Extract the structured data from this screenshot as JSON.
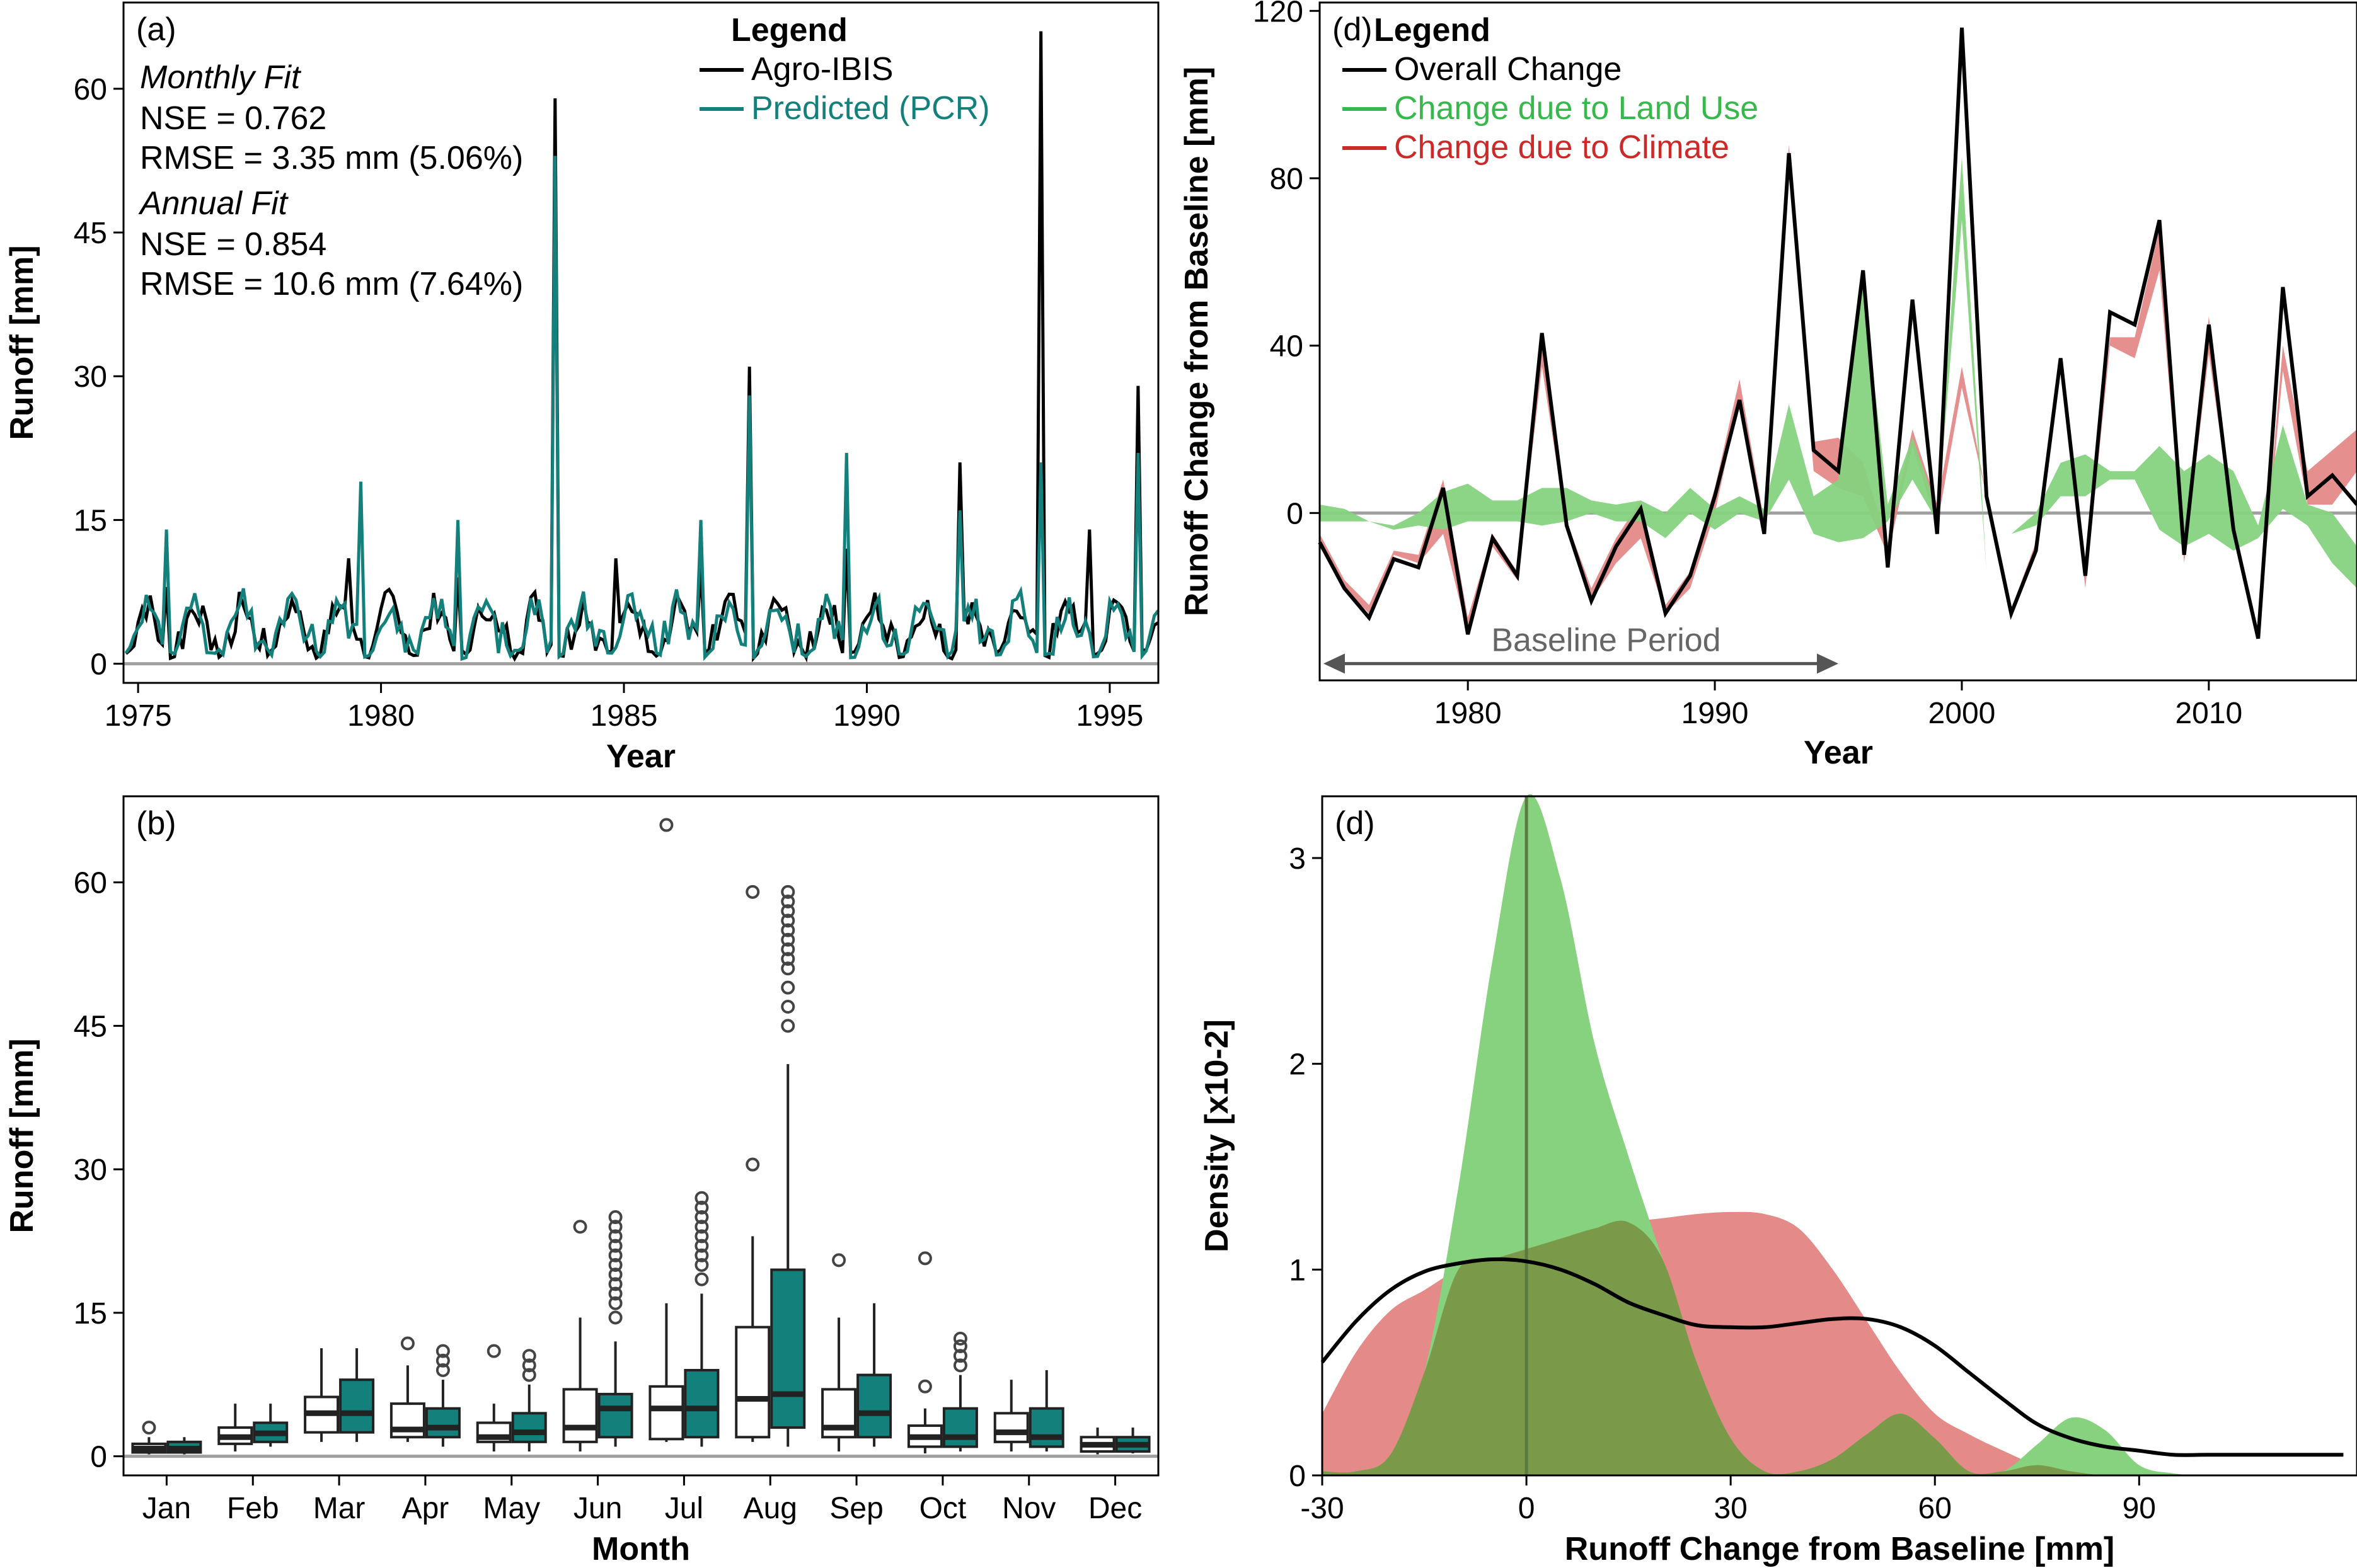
{
  "figure": {
    "colors": {
      "agro_ibis": "#000000",
      "predicted_pcr": "#14807c",
      "zero_line": "#a0a0a0",
      "land_use": "#37b84b",
      "land_use_fill": "#86d27f",
      "climate": "#cc2929",
      "climate_fill": "#e48a88",
      "overlap_fill": "#7a9a4a",
      "baseline_arrow": "#555555"
    }
  },
  "chart_data": [
    {
      "id": "a",
      "type": "line",
      "panel_label": "(a)",
      "xlabel": "Year",
      "ylabel": "Runoff [mm]",
      "xlim": [
        1974.7,
        1996.0
      ],
      "ylim": [
        -2,
        69
      ],
      "xticks": [
        1975,
        1980,
        1985,
        1990,
        1995
      ],
      "yticks": [
        0,
        15,
        30,
        45,
        60
      ],
      "grid": false,
      "legend_title": "Legend",
      "legend_position": "top-right",
      "annotations": [
        {
          "text": "Monthly Fit",
          "italic": true
        },
        {
          "text": "NSE = 0.762",
          "italic": false
        },
        {
          "text": "RMSE = 3.35 mm (5.06%)",
          "italic": false
        },
        {
          "text": "Annual Fit",
          "italic": true
        },
        {
          "text": "NSE = 0.854",
          "italic": false
        },
        {
          "text": "RMSE = 10.6 mm (7.64%)",
          "italic": false
        }
      ],
      "zero_line": 0,
      "series": [
        {
          "name": "Agro-IBIS",
          "color": "#000000",
          "spikes": [
            [
              1975.6,
              8
            ],
            [
              1979.3,
              11
            ],
            [
              1981.6,
              9
            ],
            [
              1983.6,
              59
            ],
            [
              1984.8,
              11
            ],
            [
              1986.6,
              10
            ],
            [
              1987.6,
              31
            ],
            [
              1989.6,
              12
            ],
            [
              1991.9,
              21
            ],
            [
              1993.6,
              66
            ],
            [
              1994.6,
              14
            ],
            [
              1995.6,
              29
            ]
          ]
        },
        {
          "name": "Predicted (PCR)",
          "color": "#14807c",
          "spikes": [
            [
              1975.6,
              14
            ],
            [
              1979.6,
              19
            ],
            [
              1981.6,
              15
            ],
            [
              1983.6,
              53
            ],
            [
              1986.6,
              15
            ],
            [
              1987.6,
              28
            ],
            [
              1989.6,
              22
            ],
            [
              1991.9,
              16
            ],
            [
              1993.6,
              21
            ],
            [
              1995.6,
              22
            ]
          ]
        }
      ]
    },
    {
      "id": "b",
      "type": "box",
      "panel_label": "(b)",
      "xlabel": "Month",
      "ylabel": "Runoff [mm]",
      "ylim": [
        -2,
        69
      ],
      "yticks": [
        0,
        15,
        30,
        45,
        60
      ],
      "categories": [
        "Jan",
        "Feb",
        "Mar",
        "Apr",
        "May",
        "Jun",
        "Jul",
        "Aug",
        "Sep",
        "Oct",
        "Nov",
        "Dec"
      ],
      "zero_line": 0,
      "series": [
        {
          "name": "Agro-IBIS",
          "fill": "#ffffff",
          "boxes": [
            {
              "min": 0.2,
              "q1": 0.4,
              "median": 0.8,
              "q3": 1.3,
              "max": 2.0,
              "outliers": [
                3.0
              ]
            },
            {
              "min": 0.5,
              "q1": 1.3,
              "median": 2.0,
              "q3": 3.0,
              "max": 5.5,
              "outliers": []
            },
            {
              "min": 1.5,
              "q1": 2.5,
              "median": 4.5,
              "q3": 6.2,
              "max": 11.3,
              "outliers": []
            },
            {
              "min": 1.5,
              "q1": 2.0,
              "median": 2.8,
              "q3": 5.5,
              "max": 9.5,
              "outliers": [
                11.8
              ]
            },
            {
              "min": 0.5,
              "q1": 1.5,
              "median": 2.0,
              "q3": 3.5,
              "max": 5.5,
              "outliers": [
                11.0
              ]
            },
            {
              "min": 0.5,
              "q1": 1.5,
              "median": 3.0,
              "q3": 7.0,
              "max": 14.5,
              "outliers": [
                24.0
              ]
            },
            {
              "min": 1.5,
              "q1": 1.8,
              "median": 5.0,
              "q3": 7.3,
              "max": 16.0,
              "outliers": [
                66.0
              ]
            },
            {
              "min": 1.5,
              "q1": 2.0,
              "median": 6.0,
              "q3": 13.5,
              "max": 23.0,
              "outliers": [
                30.5,
                59.0
              ]
            },
            {
              "min": 0.5,
              "q1": 2.0,
              "median": 3.0,
              "q3": 7.0,
              "max": 14.5,
              "outliers": [
                20.5
              ]
            },
            {
              "min": 0.3,
              "q1": 1.0,
              "median": 2.0,
              "q3": 3.2,
              "max": 5.0,
              "outliers": [
                7.3,
                20.7
              ]
            },
            {
              "min": 0.5,
              "q1": 1.5,
              "median": 2.5,
              "q3": 4.5,
              "max": 8.0,
              "outliers": []
            },
            {
              "min": 0.2,
              "q1": 0.5,
              "median": 1.2,
              "q3": 2.0,
              "max": 3.0,
              "outliers": []
            }
          ]
        },
        {
          "name": "Predicted (PCR)",
          "fill": "#14807c",
          "boxes": [
            {
              "min": 0.2,
              "q1": 0.4,
              "median": 0.8,
              "q3": 1.5,
              "max": 2.0,
              "outliers": []
            },
            {
              "min": 1.0,
              "q1": 1.5,
              "median": 2.4,
              "q3": 3.5,
              "max": 5.5,
              "outliers": []
            },
            {
              "min": 1.5,
              "q1": 2.5,
              "median": 4.5,
              "q3": 8.0,
              "max": 11.3,
              "outliers": []
            },
            {
              "min": 1.0,
              "q1": 2.0,
              "median": 3.0,
              "q3": 5.0,
              "max": 8.0,
              "outliers": [
                9.0,
                10.0,
                11.0
              ]
            },
            {
              "min": 0.5,
              "q1": 1.5,
              "median": 2.5,
              "q3": 4.5,
              "max": 7.5,
              "outliers": [
                8.5,
                9.5,
                10.5
              ]
            },
            {
              "min": 1.0,
              "q1": 2.0,
              "median": 5.0,
              "q3": 6.5,
              "max": 12.0,
              "outliers": [
                14.5,
                16,
                17,
                18,
                19,
                20,
                21,
                22,
                23,
                24,
                25
              ]
            },
            {
              "min": 1.0,
              "q1": 2.0,
              "median": 5.0,
              "q3": 9.0,
              "max": 17.0,
              "outliers": [
                18.5,
                20,
                21,
                22,
                23,
                24,
                25,
                26,
                27
              ]
            },
            {
              "min": 1.0,
              "q1": 3.0,
              "median": 6.5,
              "q3": 19.5,
              "max": 41.0,
              "outliers": [
                45,
                47,
                49,
                51,
                52,
                53,
                54,
                55,
                56,
                57,
                58,
                59
              ]
            },
            {
              "min": 1.0,
              "q1": 2.0,
              "median": 4.5,
              "q3": 8.5,
              "max": 16.0,
              "outliers": []
            },
            {
              "min": 0.5,
              "q1": 1.0,
              "median": 2.0,
              "q3": 5.0,
              "max": 8.5,
              "outliers": [
                9.5,
                10.5,
                11.5,
                12.3
              ]
            },
            {
              "min": 0.5,
              "q1": 1.0,
              "median": 2.0,
              "q3": 5.0,
              "max": 9.0,
              "outliers": []
            },
            {
              "min": 0.3,
              "q1": 0.5,
              "median": 1.2,
              "q3": 2.0,
              "max": 3.0,
              "outliers": []
            }
          ]
        }
      ]
    },
    {
      "id": "c",
      "type": "line",
      "panel_label": "(d)",
      "xlabel": "Year",
      "ylabel": "Runoff Change from Baseline [mm]",
      "xlim": [
        1974,
        2016
      ],
      "ylim": [
        -40,
        122
      ],
      "xticks": [
        1980,
        1990,
        2000,
        2010
      ],
      "yticks": [
        0,
        40,
        80,
        120
      ],
      "grid": false,
      "legend_title": "Legend",
      "legend_position": "top-left",
      "zero_line": 0,
      "baseline_period": {
        "label": "Baseline Period",
        "start": 1974,
        "end": 1995
      },
      "x": [
        1974,
        1975,
        1976,
        1977,
        1978,
        1979,
        1980,
        1981,
        1982,
        1983,
        1984,
        1985,
        1986,
        1987,
        1988,
        1989,
        1990,
        1991,
        1992,
        1993,
        1994,
        1995,
        1996,
        1997,
        1998,
        1999,
        2000,
        2001,
        2002,
        2003,
        2004,
        2005,
        2006,
        2007,
        2008,
        2009,
        2010,
        2011,
        2012,
        2013,
        2014,
        2015,
        2016
      ],
      "series": [
        {
          "name": "Overall Change",
          "color": "#000000",
          "values": [
            -7,
            -18,
            -25,
            -11,
            -13,
            6,
            -29,
            -6,
            -15,
            43,
            -3,
            -21,
            -8,
            1,
            -24,
            -15,
            4,
            27,
            -5,
            86,
            15,
            10,
            58,
            -13,
            51,
            -5,
            116,
            4,
            -24,
            -9,
            37,
            -15,
            48,
            45,
            70,
            -10,
            45,
            -4,
            -30,
            54,
            4,
            9,
            2
          ]
        },
        {
          "name": "Change due to Land Use",
          "color": "#37b84b",
          "lower": [
            -2,
            -2,
            -2,
            -4,
            -3,
            -4,
            -2,
            -2,
            -2,
            -3,
            -2,
            0,
            -2,
            -2,
            -6,
            0,
            -4,
            0,
            -2,
            8,
            -5,
            -7,
            -6,
            -2,
            8,
            -2,
            70,
            -14,
            -5,
            -3,
            4,
            4,
            8,
            8,
            -4,
            -8,
            -5,
            -9,
            -6,
            1,
            -3,
            -12,
            -18
          ],
          "upper": [
            2,
            1,
            -2,
            -3,
            0,
            5,
            7,
            3,
            3,
            6,
            6,
            3,
            2,
            3,
            0,
            6,
            1,
            4,
            1,
            26,
            4,
            8,
            55,
            2,
            18,
            1,
            85,
            -14,
            -5,
            0,
            12,
            14,
            10,
            10,
            16,
            10,
            14,
            10,
            -3,
            21,
            2,
            0,
            -8
          ]
        },
        {
          "name": "Change due to Climate",
          "color": "#cc2929",
          "lower": [
            -7,
            -18,
            -24,
            -10,
            -12,
            -5,
            -29,
            -8,
            -16,
            35,
            -4,
            -21,
            -12,
            -6,
            -24,
            -18,
            0,
            27,
            -3,
            82,
            10,
            6,
            4,
            -10,
            16,
            -3,
            30,
            4,
            -24,
            -8,
            34,
            -18,
            40,
            37,
            58,
            -12,
            38,
            -4,
            -30,
            34,
            2,
            2,
            10
          ],
          "upper": [
            -5,
            -16,
            -22,
            -9,
            -10,
            8,
            -25,
            -5,
            -14,
            40,
            -2,
            -18,
            -6,
            3,
            -22,
            -14,
            6,
            32,
            -2,
            88,
            17,
            18,
            12,
            -7,
            20,
            2,
            35,
            4,
            -23,
            -7,
            37,
            -14,
            42,
            42,
            68,
            -8,
            47,
            -2,
            -28,
            40,
            10,
            15,
            20
          ]
        }
      ]
    },
    {
      "id": "d",
      "type": "area",
      "panel_label": "(d)",
      "xlabel": "Runoff Change from Baseline [mm]",
      "ylabel": "Density [x10-2]",
      "xlim": [
        -30,
        122
      ],
      "ylim": [
        0,
        3.3
      ],
      "xticks": [
        -30,
        0,
        30,
        60,
        90
      ],
      "yticks": [
        0,
        1,
        2,
        3
      ],
      "grid": false,
      "vline": 0,
      "x": [
        -30,
        -25,
        -20,
        -15,
        -10,
        -5,
        0,
        5,
        10,
        15,
        20,
        25,
        30,
        35,
        40,
        45,
        50,
        55,
        60,
        65,
        70,
        75,
        80,
        85,
        90,
        95,
        100,
        105,
        110,
        115,
        120
      ],
      "series": [
        {
          "name": "Change due to Land Use",
          "color": "#86d27f",
          "values": [
            0.02,
            0.02,
            0.1,
            0.5,
            1.4,
            2.5,
            3.3,
            2.9,
            2.1,
            1.55,
            1.05,
            0.55,
            0.18,
            0.02,
            0.02,
            0.08,
            0.2,
            0.3,
            0.18,
            0.02,
            0.02,
            0.15,
            0.28,
            0.22,
            0.05,
            0.01,
            0,
            0,
            0,
            0,
            0
          ]
        },
        {
          "name": "Change due to Climate",
          "color": "#e48a88",
          "values": [
            0.3,
            0.6,
            0.8,
            0.9,
            1.0,
            1.05,
            1.1,
            1.15,
            1.2,
            1.23,
            1.25,
            1.27,
            1.28,
            1.27,
            1.2,
            1.0,
            0.75,
            0.5,
            0.3,
            0.2,
            0.12,
            0.05,
            0.02,
            0,
            0,
            0,
            0,
            0,
            0,
            0,
            0
          ]
        },
        {
          "name": "Overall Change",
          "color": "#000000",
          "values": [
            0.55,
            0.75,
            0.9,
            0.99,
            1.03,
            1.05,
            1.04,
            1.0,
            0.93,
            0.84,
            0.78,
            0.73,
            0.72,
            0.72,
            0.74,
            0.76,
            0.76,
            0.72,
            0.63,
            0.5,
            0.37,
            0.25,
            0.18,
            0.14,
            0.12,
            0.1,
            0.1,
            0.1,
            0.1,
            0.1,
            0.1
          ]
        }
      ]
    }
  ]
}
